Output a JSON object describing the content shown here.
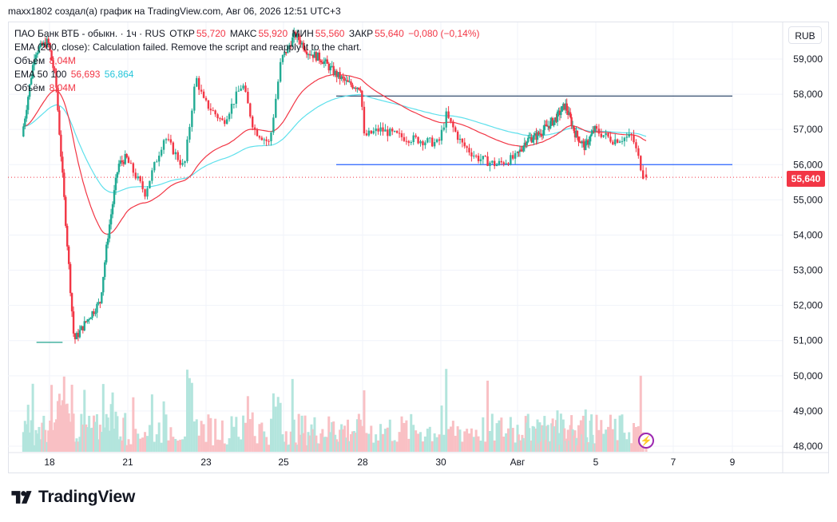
{
  "header": {
    "author_line": "maxx1802 создал(а) график на TradingView.com, Авг 06, 2026 12:51 UTC+3"
  },
  "legend": {
    "symbol": "ПАО Банк ВТБ - обыкн. · 1ч · RUS",
    "open_label": "ОТКР",
    "open_value": "55,720",
    "high_label": "МАКС",
    "high_value": "55,920",
    "low_label": "МИН",
    "low_value": "55,560",
    "close_label": "ЗАКР",
    "close_value": "55,640",
    "change": "−0,080 (−0,14%)",
    "ema200_line": "EMA (200, close): Calculation failed. Remove the script and reapply it to the chart.",
    "volume1_label": "Объем",
    "volume1_value": "8,04M",
    "ema_label": "EMA 50 100",
    "ema50_value": "56,693",
    "ema100_value": "56,864",
    "volume2_label": "Объём",
    "volume2_value": "8,04M"
  },
  "currency_button": "RUB",
  "last_price_tag": "55,640",
  "brand": "TradingView",
  "colors": {
    "up": "#22ab94",
    "down": "#f23645",
    "ema50": "#f23645",
    "ema100": "#5ee0ec",
    "level_line": "#2962ff",
    "upper_level_line": "#1e3a5f",
    "volume_up": "#b3e5dd",
    "volume_down": "#f9c0c4"
  },
  "chart_data": {
    "type": "candlestick",
    "title": "ПАО Банк ВТБ - обыкн.",
    "timeframe": "1ч",
    "currency": "RUB",
    "x_ticks": [
      "18",
      "21",
      "23",
      "25",
      "28",
      "30",
      "Авг",
      "5",
      "7",
      "9"
    ],
    "y_ticks": [
      "59,000",
      "58,000",
      "57,000",
      "56,000",
      "55,000",
      "54,000",
      "53,000",
      "52,000",
      "51,000",
      "50,000",
      "49,000",
      "48,000"
    ],
    "ylim": [
      47900,
      59900
    ],
    "close_path": [
      {
        "x": "17",
        "y": 56800
      },
      {
        "x": "17.5",
        "y": 59200
      },
      {
        "x": "18",
        "y": 59500
      },
      {
        "x": "18.3",
        "y": 58400
      },
      {
        "x": "19",
        "y": 51000
      },
      {
        "x": "19.6",
        "y": 51700
      },
      {
        "x": "20",
        "y": 52100
      },
      {
        "x": "20.3",
        "y": 54000
      },
      {
        "x": "20.7",
        "y": 56000
      },
      {
        "x": "21",
        "y": 56200
      },
      {
        "x": "21.5",
        "y": 55200
      },
      {
        "x": "22",
        "y": 56800
      },
      {
        "x": "22.5",
        "y": 55900
      },
      {
        "x": "22.8",
        "y": 58500
      },
      {
        "x": "23",
        "y": 57800
      },
      {
        "x": "23.5",
        "y": 57200
      },
      {
        "x": "24",
        "y": 58300
      },
      {
        "x": "24.3",
        "y": 57000
      },
      {
        "x": "24.7",
        "y": 56600
      },
      {
        "x": "25",
        "y": 59000
      },
      {
        "x": "25.5",
        "y": 59700
      },
      {
        "x": "26",
        "y": 59200
      },
      {
        "x": "26.5",
        "y": 59000
      },
      {
        "x": "27",
        "y": 58600
      },
      {
        "x": "27.5",
        "y": 58300
      },
      {
        "x": "28",
        "y": 58200
      },
      {
        "x": "28.1",
        "y": 56800
      },
      {
        "x": "28.5",
        "y": 57000
      },
      {
        "x": "29",
        "y": 56800
      },
      {
        "x": "29.5",
        "y": 56700
      },
      {
        "x": "30",
        "y": 56600
      },
      {
        "x": "30.2",
        "y": 57400
      },
      {
        "x": "30.6",
        "y": 56600
      },
      {
        "x": "31",
        "y": 56200
      },
      {
        "x": "31.5",
        "y": 56000
      },
      {
        "x": "Авг 1",
        "y": 56200
      },
      {
        "x": "Авг 1.5",
        "y": 56700
      },
      {
        "x": "Авг 2",
        "y": 56800
      },
      {
        "x": "Авг 3",
        "y": 57300
      },
      {
        "x": "Авг 3.5",
        "y": 57700
      },
      {
        "x": "Авг 4",
        "y": 56900
      },
      {
        "x": "Авг 4.5",
        "y": 56500
      },
      {
        "x": "Авг 5",
        "y": 57000
      },
      {
        "x": "Авг 5.5",
        "y": 56700
      },
      {
        "x": "Авг 6",
        "y": 56800
      },
      {
        "x": "Авг 6.3",
        "y": 55640
      }
    ],
    "last": {
      "open": 55720,
      "high": 55920,
      "low": 55560,
      "close": 55640
    },
    "ema50_value": 56693,
    "ema100_value": 56864,
    "horizontal_levels": [
      {
        "price": 57950,
        "from": "27",
        "to": "Авг 9"
      },
      {
        "price": 56000,
        "from": "27",
        "to": "Авг 9"
      },
      {
        "price": 50950,
        "from": "17.5",
        "to": "18.5"
      }
    ],
    "volume_last": "8,04M",
    "grid": true,
    "y_axis_position": "right"
  }
}
